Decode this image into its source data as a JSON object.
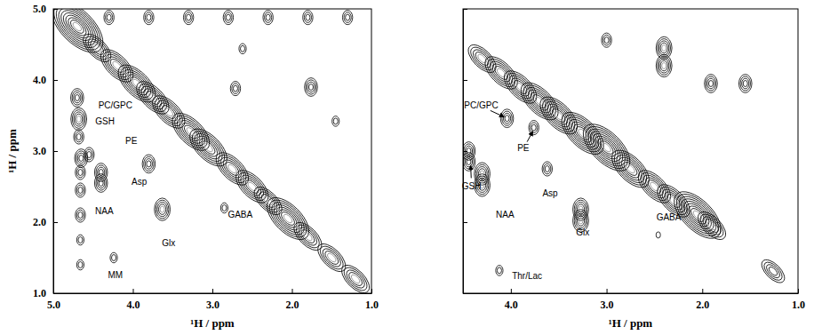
{
  "chart_data": [
    {
      "type": "contour",
      "xlabel": "¹H / ppm",
      "ylabel": "¹H / ppm",
      "xlim": [
        5.0,
        1.0
      ],
      "ylim": [
        1.0,
        5.0
      ],
      "xticks": [
        {
          "value": 5,
          "label": "5.0"
        },
        {
          "value": 4,
          "label": "4.0"
        },
        {
          "value": 3,
          "label": "3.0"
        },
        {
          "value": 2,
          "label": "2.0"
        },
        {
          "value": 1,
          "label": "1.0"
        }
      ],
      "yticks": [
        {
          "value": 1,
          "label": "1.0"
        },
        {
          "value": 2,
          "label": "2.0"
        },
        {
          "value": 3,
          "label": "3.0"
        },
        {
          "value": 4,
          "label": "4.0"
        },
        {
          "value": 5,
          "label": "5.0"
        }
      ],
      "color": "#000000",
      "peaks": [
        {
          "x": 4.7,
          "y": 4.75,
          "z": 10
        },
        {
          "x": 4.7,
          "y": 3.75,
          "z": 4
        },
        {
          "x": 4.68,
          "y": 3.45,
          "z": 5
        },
        {
          "x": 4.68,
          "y": 3.2,
          "z": 3
        },
        {
          "x": 4.65,
          "y": 2.9,
          "z": 4
        },
        {
          "x": 4.66,
          "y": 2.7,
          "z": 3
        },
        {
          "x": 4.66,
          "y": 2.45,
          "z": 3
        },
        {
          "x": 4.66,
          "y": 2.1,
          "z": 3
        },
        {
          "x": 4.66,
          "y": 1.75,
          "z": 2
        },
        {
          "x": 4.66,
          "y": 1.4,
          "z": 2
        },
        {
          "x": 4.55,
          "y": 2.95,
          "z": 3
        },
        {
          "x": 4.4,
          "y": 2.7,
          "z": 4
        },
        {
          "x": 4.4,
          "y": 2.55,
          "z": 4
        },
        {
          "x": 3.8,
          "y": 2.82,
          "z": 4
        },
        {
          "x": 3.63,
          "y": 2.18,
          "z": 5
        },
        {
          "x": 4.24,
          "y": 1.5,
          "z": 2
        },
        {
          "x": 2.85,
          "y": 2.2,
          "z": 2
        },
        {
          "x": 2.71,
          "y": 3.88,
          "z": 3
        },
        {
          "x": 1.76,
          "y": 3.9,
          "z": 4
        },
        {
          "x": 2.62,
          "y": 4.44,
          "z": 2
        },
        {
          "x": 1.45,
          "y": 3.42,
          "z": 2
        },
        {
          "x": 4.3,
          "y": 4.88,
          "z": 3
        },
        {
          "x": 3.8,
          "y": 4.88,
          "z": 3
        },
        {
          "x": 3.3,
          "y": 4.88,
          "z": 3
        },
        {
          "x": 2.8,
          "y": 4.88,
          "z": 3
        },
        {
          "x": 2.3,
          "y": 4.88,
          "z": 3
        },
        {
          "x": 1.8,
          "y": 4.88,
          "z": 3
        },
        {
          "x": 1.3,
          "y": 4.88,
          "z": 3
        },
        {
          "x": 4.45,
          "y": 4.45,
          "z": 5
        },
        {
          "x": 4.2,
          "y": 4.2,
          "z": 6
        },
        {
          "x": 3.95,
          "y": 3.95,
          "z": 7
        },
        {
          "x": 3.75,
          "y": 3.75,
          "z": 6
        },
        {
          "x": 3.55,
          "y": 3.55,
          "z": 6
        },
        {
          "x": 3.27,
          "y": 3.27,
          "z": 7
        },
        {
          "x": 3.05,
          "y": 3.05,
          "z": 7
        },
        {
          "x": 2.75,
          "y": 2.75,
          "z": 6
        },
        {
          "x": 2.5,
          "y": 2.5,
          "z": 6
        },
        {
          "x": 2.3,
          "y": 2.3,
          "z": 5
        },
        {
          "x": 2.05,
          "y": 2.05,
          "z": 8
        },
        {
          "x": 1.8,
          "y": 1.8,
          "z": 5
        },
        {
          "x": 1.5,
          "y": 1.5,
          "z": 5
        },
        {
          "x": 1.2,
          "y": 1.2,
          "z": 5
        }
      ],
      "annotations": [
        {
          "text": "PC/GPC",
          "x": 4.22,
          "y": 3.63
        },
        {
          "text": "GSH",
          "x": 4.35,
          "y": 3.41
        },
        {
          "text": "PE",
          "x": 4.02,
          "y": 3.13
        },
        {
          "text": "Asp",
          "x": 3.92,
          "y": 2.56
        },
        {
          "text": "NAA",
          "x": 4.36,
          "y": 2.15
        },
        {
          "text": "Glx",
          "x": 3.55,
          "y": 1.69
        },
        {
          "text": "GABA",
          "x": 2.65,
          "y": 2.09
        },
        {
          "text": "MM",
          "x": 4.22,
          "y": 1.25
        }
      ]
    },
    {
      "type": "contour",
      "xlabel": "¹H / ppm",
      "xlim": [
        4.5,
        1.0
      ],
      "ylim": [
        1.0,
        5.0
      ],
      "xticks": [
        {
          "value": 4,
          "label": "4.0"
        },
        {
          "value": 3,
          "label": "3.0"
        },
        {
          "value": 2,
          "label": "2.0"
        },
        {
          "value": 1,
          "label": "1.0"
        }
      ],
      "yticks": [
        1,
        2,
        3,
        4,
        5
      ],
      "tick_labels": "x",
      "color": "#000000",
      "peaks": [
        {
          "x": 4.44,
          "y": 3.0,
          "z": 4
        },
        {
          "x": 4.44,
          "y": 2.85,
          "z": 4
        },
        {
          "x": 4.3,
          "y": 2.68,
          "z": 5
        },
        {
          "x": 4.3,
          "y": 2.52,
          "z": 5
        },
        {
          "x": 4.04,
          "y": 3.46,
          "z": 4
        },
        {
          "x": 3.76,
          "y": 3.33,
          "z": 3
        },
        {
          "x": 3.62,
          "y": 2.75,
          "z": 3
        },
        {
          "x": 3.27,
          "y": 2.18,
          "z": 5
        },
        {
          "x": 3.27,
          "y": 2.02,
          "z": 5
        },
        {
          "x": 4.12,
          "y": 1.32,
          "z": 2
        },
        {
          "x": 2.46,
          "y": 1.82,
          "z": 1
        },
        {
          "x": 1.26,
          "y": 1.31,
          "z": 4
        },
        {
          "x": 3.0,
          "y": 4.56,
          "z": 3
        },
        {
          "x": 2.4,
          "y": 4.45,
          "z": 5
        },
        {
          "x": 2.4,
          "y": 4.2,
          "z": 5
        },
        {
          "x": 1.91,
          "y": 3.95,
          "z": 4
        },
        {
          "x": 1.55,
          "y": 3.95,
          "z": 4
        },
        {
          "x": 4.3,
          "y": 4.3,
          "z": 5
        },
        {
          "x": 4.1,
          "y": 4.1,
          "z": 6
        },
        {
          "x": 3.9,
          "y": 3.9,
          "z": 6
        },
        {
          "x": 3.7,
          "y": 3.7,
          "z": 7
        },
        {
          "x": 3.5,
          "y": 3.5,
          "z": 7
        },
        {
          "x": 3.25,
          "y": 3.25,
          "z": 8
        },
        {
          "x": 3.0,
          "y": 3.05,
          "z": 9
        },
        {
          "x": 2.75,
          "y": 2.75,
          "z": 7
        },
        {
          "x": 2.5,
          "y": 2.5,
          "z": 6
        },
        {
          "x": 2.3,
          "y": 2.3,
          "z": 6
        },
        {
          "x": 2.05,
          "y": 2.1,
          "z": 9
        },
        {
          "x": 1.9,
          "y": 1.95,
          "z": 5
        }
      ],
      "annotations": [
        {
          "text": "PC/GPC",
          "x": 4.31,
          "y": 3.63,
          "arrow_to": [
            4.07,
            3.48
          ]
        },
        {
          "text": "PE",
          "x": 3.87,
          "y": 3.03,
          "arrow_to": [
            3.77,
            3.28
          ]
        },
        {
          "text": "GSH",
          "x": 4.41,
          "y": 2.5,
          "arrow_to": [
            4.42,
            2.8
          ]
        },
        {
          "text": "NAA",
          "x": 4.06,
          "y": 2.1
        },
        {
          "text": "Asp",
          "x": 3.59,
          "y": 2.4
        },
        {
          "text": "Glx",
          "x": 3.25,
          "y": 1.85
        },
        {
          "text": "GABA",
          "x": 2.35,
          "y": 2.06
        },
        {
          "text": "Thr/Lac",
          "x": 3.83,
          "y": 1.23
        }
      ]
    }
  ]
}
